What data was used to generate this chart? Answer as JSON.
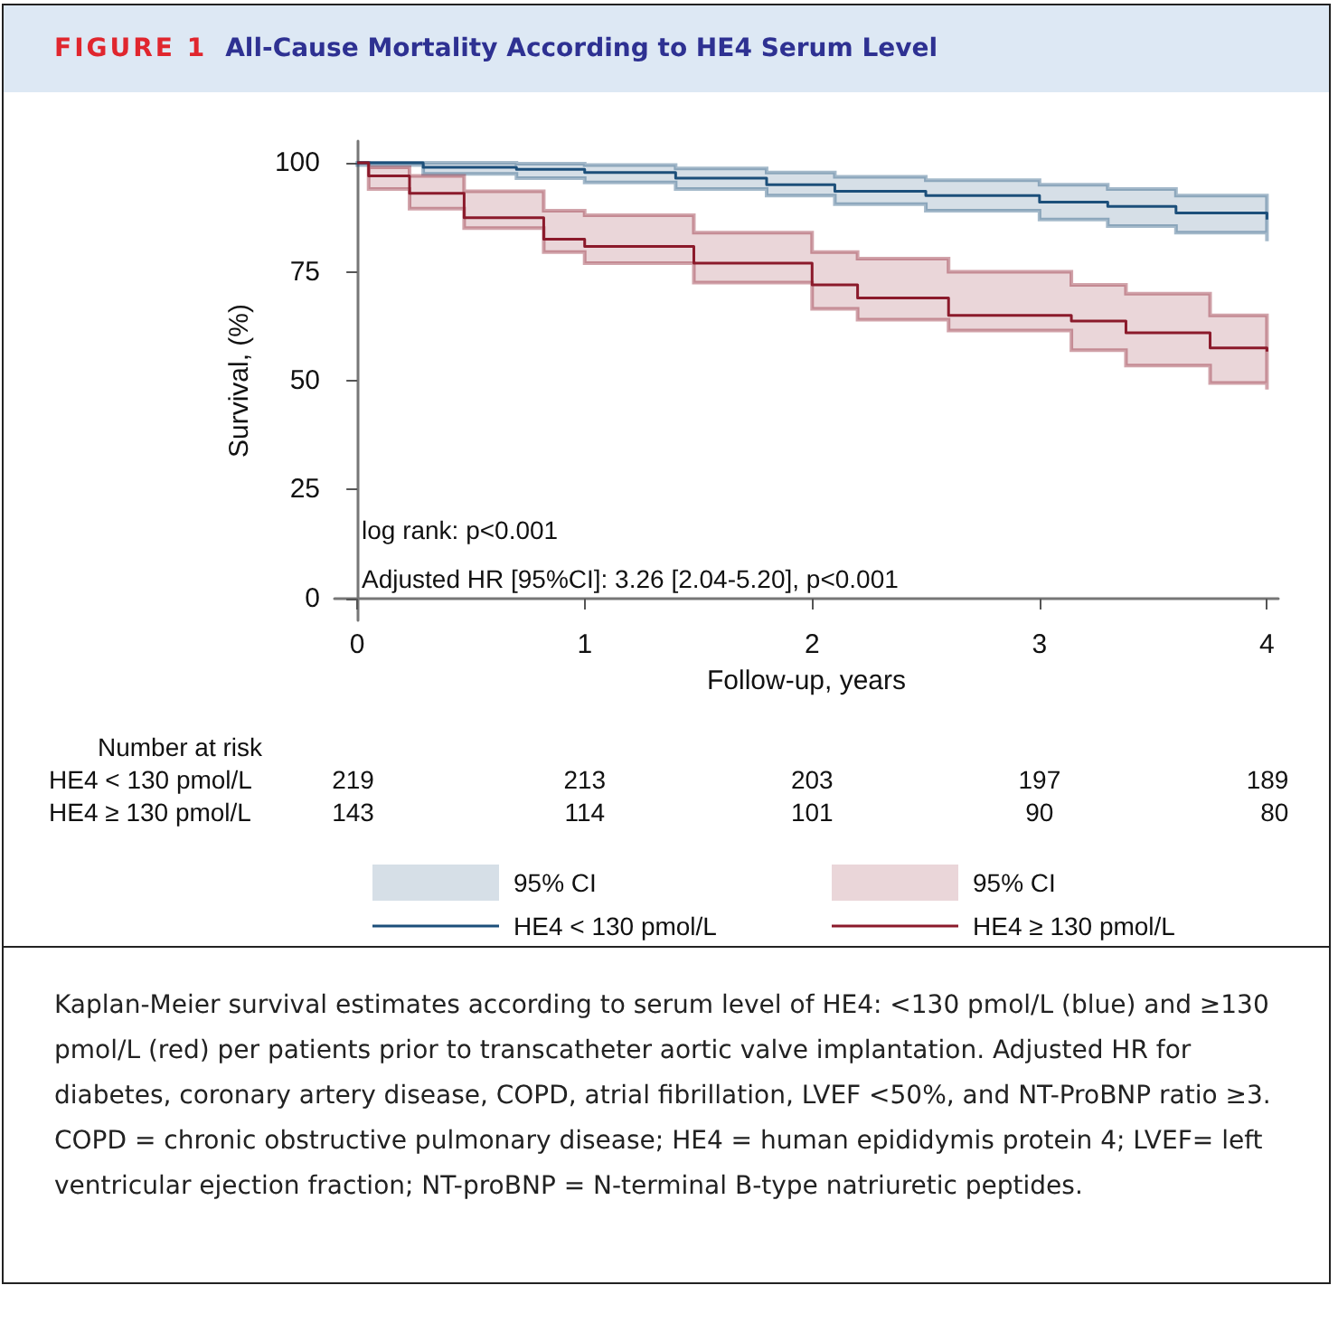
{
  "chart_data": {
    "type": "step",
    "subtitle": "FIGURE 1",
    "title": "All-Cause Mortality According to HE4 Serum Level",
    "xlabel": "Follow-up, years",
    "ylabel": "Survival, (%)",
    "xlim": [
      -0.1,
      4.05
    ],
    "xticks": [
      0,
      1,
      2,
      3,
      4
    ],
    "ylim": [
      -5,
      105
    ],
    "yticks": [
      0,
      25,
      50,
      75,
      100
    ],
    "grid": false,
    "legend": "bottom",
    "marker": "none",
    "line_style": "solid",
    "series": [
      {
        "name": "HE4 < 130 pmol/L",
        "color": "#1c4f7a",
        "x": [
          0,
          0.29,
          0.7,
          1,
          1.4,
          1.8,
          2.1,
          2.5,
          3,
          3.3,
          3.6,
          4
        ],
        "values": [
          100,
          99,
          98.5,
          97.8,
          96.5,
          95,
          93.5,
          92.5,
          91,
          90,
          88.5,
          87
        ],
        "upper": [
          100,
          100,
          99.8,
          99.5,
          98.7,
          97.8,
          96.8,
          96,
          95,
          94,
          92.5,
          91.5
        ],
        "lower": [
          99.5,
          97.5,
          96.5,
          95.5,
          94,
          92.5,
          90.5,
          89,
          87,
          85.5,
          84,
          82
        ]
      },
      {
        "name": "HE4 ≥ 130 pmol/L",
        "color": "#8b1a2b",
        "x": [
          0,
          0.05,
          0.23,
          0.47,
          0.82,
          1,
          1.48,
          2,
          2.2,
          2.6,
          3.14,
          3.38,
          3.75,
          4
        ],
        "values": [
          100,
          97,
          93,
          87.4,
          82.5,
          80.8,
          77,
          72,
          69,
          65,
          63.7,
          61,
          57.5,
          56.7
        ],
        "upper": [
          100,
          99,
          97,
          93.5,
          89,
          88,
          84,
          79.5,
          78,
          75,
          72,
          70,
          65,
          64.5
        ],
        "lower": [
          100,
          94,
          89.5,
          85,
          79.5,
          77,
          72.5,
          66.5,
          64,
          61.5,
          57,
          53.5,
          49.5,
          48
        ]
      }
    ],
    "annotations": [
      "log rank: p<0.001",
      "Adjusted HR [95%CI]: 3.26 [2.04-5.20], p<0.001",
      "Number at risk",
      "HE4 < 130 pmol/L",
      "219",
      "213",
      "203",
      "197",
      "189",
      "HE4 ≥ 130 pmol/L",
      "143",
      "114",
      "101",
      "90",
      "80",
      "95% CI",
      "95% CI",
      "Kaplan-Meier survival estimates according to serum level of HE4: <130 pmol/L (blue) and ≥130 pmol/L (red) per patients prior to transcatheter aortic valve implantation. Adjusted HR for diabetes, coronary artery disease, COPD, atrial fibrillation, LVEF <50%, and NT-ProBNP ratio ≥3. COPD = chronic obstructive pulmonary disease; HE4 = human epididymis protein 4; LVEF= left ventricular ejection fraction; NT-proBNP = N-terminal B-type natriuretic peptides."
    ]
  }
}
